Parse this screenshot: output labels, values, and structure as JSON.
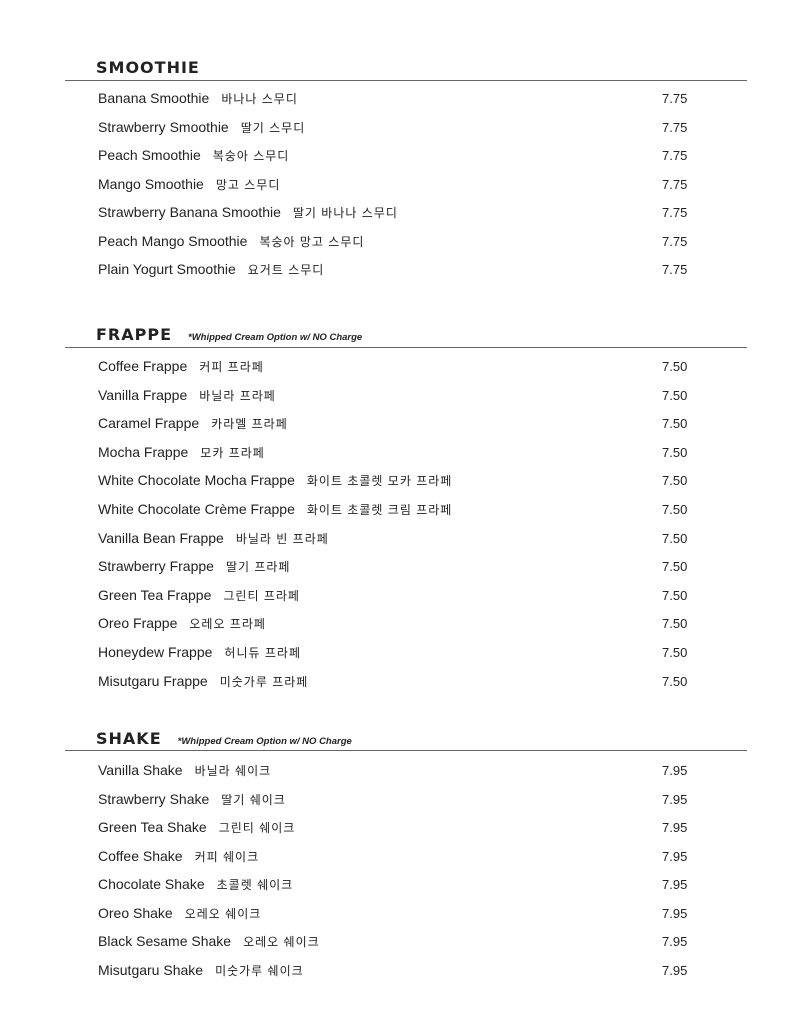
{
  "sections": [
    {
      "title": "SMOOTHIE",
      "note": "",
      "items": [
        {
          "name": "Banana Smoothie",
          "korean": "바나나 스무디",
          "price": "7.75"
        },
        {
          "name": "Strawberry Smoothie",
          "korean": "딸기 스무디",
          "price": "7.75"
        },
        {
          "name": "Peach Smoothie",
          "korean": "복숭아 스무디",
          "price": "7.75"
        },
        {
          "name": "Mango Smoothie",
          "korean": "망고 스무디",
          "price": "7.75"
        },
        {
          "name": "Strawberry Banana Smoothie",
          "korean": "딸기 바나나 스무디",
          "price": "7.75"
        },
        {
          "name": "Peach Mango Smoothie",
          "korean": "복숭아 망고 스무디",
          "price": "7.75"
        },
        {
          "name": "Plain Yogurt Smoothie",
          "korean": "요거트 스무디",
          "price": "7.75"
        }
      ]
    },
    {
      "title": "FRAPPE",
      "note": "*Whipped Cream Option w/ NO Charge",
      "items": [
        {
          "name": "Coffee Frappe",
          "korean": "커피 프라페",
          "price": "7.50"
        },
        {
          "name": "Vanilla Frappe",
          "korean": "바닐라 프라페",
          "price": "7.50"
        },
        {
          "name": "Caramel Frappe",
          "korean": "카라멜 프라페",
          "price": "7.50"
        },
        {
          "name": "Mocha Frappe",
          "korean": "모카 프라페",
          "price": "7.50"
        },
        {
          "name": "White Chocolate  Mocha Frappe",
          "korean": "화이트 초콜렛 모카 프라페",
          "price": "7.50"
        },
        {
          "name": "White Chocolate Crème Frappe",
          "korean": "화이트 초콜렛 크림 프라페",
          "price": "7.50"
        },
        {
          "name": "Vanilla Bean Frappe",
          "korean": "바닐라 빈 프라페",
          "price": "7.50"
        },
        {
          "name": "Strawberry Frappe",
          "korean": "딸기 프라페",
          "price": "7.50"
        },
        {
          "name": "Green Tea Frappe",
          "korean": "그린티 프라페",
          "price": "7.50"
        },
        {
          "name": "Oreo Frappe",
          "korean": "오레오 프라페",
          "price": "7.50"
        },
        {
          "name": "Honeydew Frappe",
          "korean": "허니듀 프라페",
          "price": "7.50"
        },
        {
          "name": "Misutgaru Frappe",
          "korean": "미숫가루 프라페",
          "price": "7.50"
        }
      ]
    },
    {
      "title": "SHAKE",
      "note": "*Whipped Cream Option w/ NO Charge",
      "items": [
        {
          "name": "Vanilla Shake",
          "korean": "바닐라 쉐이크",
          "price": "7.95"
        },
        {
          "name": "Strawberry Shake",
          "korean": "딸기 쉐이크",
          "price": "7.95"
        },
        {
          "name": "Green Tea Shake",
          "korean": "그린티 쉐이크",
          "price": "7.95"
        },
        {
          "name": "Coffee Shake",
          "korean": "커피 쉐이크",
          "price": "7.95"
        },
        {
          "name": "Chocolate Shake",
          "korean": "초콜렛 쉐이크",
          "price": "7.95"
        },
        {
          "name": "Oreo Shake",
          "korean": "오레오 쉐이크",
          "price": "7.95"
        },
        {
          "name": "Black Sesame Shake",
          "korean": "오레오 쉐이크",
          "price": "7.95"
        },
        {
          "name": "Misutgaru Shake",
          "korean": "미숫가루 쉐이크",
          "price": "7.95"
        }
      ]
    }
  ]
}
